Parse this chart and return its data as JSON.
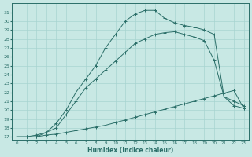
{
  "bg_color": "#c8e8e4",
  "grid_color": "#a8d4d0",
  "line_color": "#2a6e68",
  "xlabel": "Humidex (Indice chaleur)",
  "xlim": [
    -0.5,
    23.5
  ],
  "ylim": [
    16.7,
    32.0
  ],
  "yticks": [
    17,
    18,
    19,
    20,
    21,
    22,
    23,
    24,
    25,
    26,
    27,
    28,
    29,
    30,
    31
  ],
  "xticks": [
    0,
    1,
    2,
    3,
    4,
    5,
    6,
    7,
    8,
    9,
    10,
    11,
    12,
    13,
    14,
    15,
    16,
    17,
    18,
    19,
    20,
    21,
    22,
    23
  ],
  "line1_x": [
    0,
    1,
    2,
    3,
    4,
    5,
    6,
    7,
    8,
    9,
    10,
    11,
    12,
    13,
    14,
    15,
    16,
    17,
    18,
    19,
    20,
    21,
    22,
    23
  ],
  "line1_y": [
    17.0,
    17.0,
    17.0,
    17.2,
    17.3,
    17.5,
    17.7,
    17.9,
    18.1,
    18.3,
    18.6,
    18.9,
    19.2,
    19.5,
    19.8,
    20.1,
    20.4,
    20.7,
    21.0,
    21.3,
    21.6,
    21.9,
    22.2,
    20.2
  ],
  "line2_x": [
    0,
    1,
    2,
    3,
    4,
    5,
    6,
    7,
    8,
    9,
    10,
    11,
    12,
    13,
    14,
    15,
    16,
    17,
    18,
    19,
    20,
    21,
    22,
    23
  ],
  "line2_y": [
    17.0,
    17.0,
    17.2,
    17.5,
    18.0,
    19.5,
    21.0,
    22.5,
    23.5,
    24.5,
    25.5,
    26.5,
    27.5,
    28.0,
    28.5,
    28.7,
    28.8,
    28.5,
    28.2,
    27.8,
    25.6,
    21.5,
    21.0,
    20.5
  ],
  "line3_x": [
    0,
    1,
    2,
    3,
    4,
    5,
    6,
    7,
    8,
    9,
    10,
    11,
    12,
    13,
    14,
    15,
    16,
    17,
    18,
    19,
    20,
    21,
    22,
    23
  ],
  "line3_y": [
    17.0,
    17.0,
    17.0,
    17.5,
    18.5,
    20.0,
    22.0,
    23.5,
    25.0,
    27.0,
    28.5,
    30.0,
    30.8,
    31.2,
    31.2,
    30.3,
    29.8,
    29.5,
    29.3,
    29.0,
    28.5,
    21.5,
    20.5,
    20.2
  ]
}
